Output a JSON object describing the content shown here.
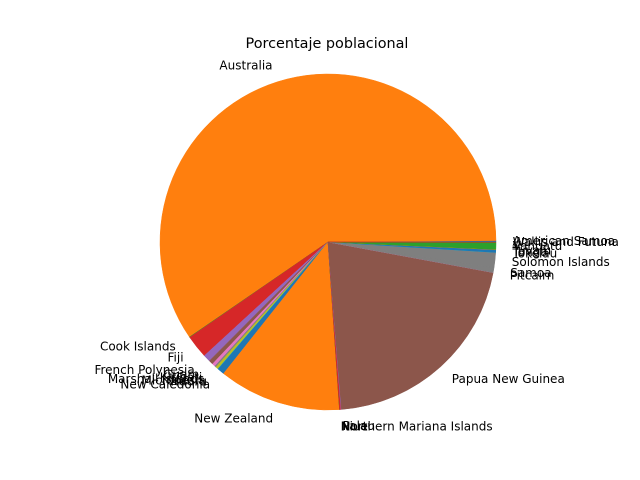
{
  "chart_data": {
    "type": "pie",
    "title": "Porcentaje poblacional",
    "start_angle_deg": 0,
    "direction": "counterclockwise",
    "slices": [
      {
        "label": "American Samoa",
        "value": 0.14,
        "color": "#1f77b4"
      },
      {
        "label": "Australia",
        "value": 60.42,
        "color": "#ff7f0e"
      },
      {
        "label": "Cook Islands",
        "value": 0.04,
        "color": "#2ca02c"
      },
      {
        "label": "Fiji",
        "value": 2.26,
        "color": "#d62728"
      },
      {
        "label": "French Polynesia",
        "value": 0.7,
        "color": "#9467bd"
      },
      {
        "label": "Guam",
        "value": 0.42,
        "color": "#8c564b"
      },
      {
        "label": "Kiribati",
        "value": 0.31,
        "color": "#e377c2"
      },
      {
        "label": "Marshall Islands",
        "value": 0.14,
        "color": "#7f7f7f"
      },
      {
        "label": "Micronesia",
        "value": 0.25,
        "color": "#bcbd22"
      },
      {
        "label": "Nauru",
        "value": 0.03,
        "color": "#17becf"
      },
      {
        "label": "New Caledonia",
        "value": 0.68,
        "color": "#1f77b4"
      },
      {
        "label": "New Zealand",
        "value": 11.96,
        "color": "#ff7f0e"
      },
      {
        "label": "Niue",
        "value": 0.01,
        "color": "#2ca02c"
      },
      {
        "label": "Northern Mariana Islands",
        "value": 0.14,
        "color": "#d62728"
      },
      {
        "label": "Palau",
        "value": 0.05,
        "color": "#9467bd"
      },
      {
        "label": "Papua New Guinea",
        "value": 21.15,
        "color": "#8c564b"
      },
      {
        "label": "Pitcairn",
        "value": 0.0001,
        "color": "#e377c2"
      },
      {
        "label": "Samoa",
        "value": 0.5,
        "color": "#7f7f7f"
      },
      {
        "label": "Solomon Islands",
        "value": 1.46,
        "color": "#7f7f7f"
      },
      {
        "label": "Tokelau",
        "value": 0.004,
        "color": "#17becf"
      },
      {
        "label": "Tonga",
        "value": 0.26,
        "color": "#1f77b4"
      },
      {
        "label": "Tuvalu",
        "value": 0.03,
        "color": "#ff7f0e"
      },
      {
        "label": "Vanuatu",
        "value": 0.68,
        "color": "#2ca02c"
      },
      {
        "label": "Wallis and Futuna",
        "value": 0.03,
        "color": "#d62728"
      }
    ]
  }
}
